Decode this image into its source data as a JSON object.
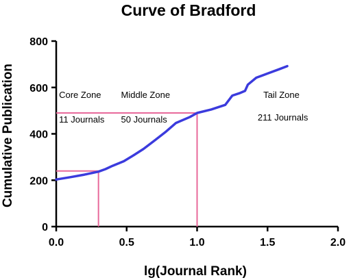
{
  "chart_data": {
    "type": "line",
    "title": "Curve of Bradford",
    "xlabel": "lg(Journal Rank)",
    "ylabel": "Cumulative Publication",
    "xlim": [
      0,
      2.0
    ],
    "ylim": [
      0,
      800
    ],
    "x_ticks": [
      "0.0",
      "0.5",
      "1.0",
      "1.5",
      "2.0"
    ],
    "y_ticks": [
      "0",
      "200",
      "400",
      "600",
      "800"
    ],
    "grid": false,
    "line_color": "#3b3bdd",
    "guide_color": "#e8689a",
    "series": [
      {
        "x": [
          0.0,
          0.1,
          0.2,
          0.3,
          0.35,
          0.4,
          0.48,
          0.55,
          0.62,
          0.7,
          0.78,
          0.85,
          0.95,
          1.0,
          1.1,
          1.2,
          1.25,
          1.3,
          1.34,
          1.36,
          1.42,
          1.5,
          1.58,
          1.64
        ],
        "y": [
          203,
          213,
          224,
          237,
          248,
          262,
          282,
          308,
          335,
          372,
          410,
          447,
          473,
          490,
          505,
          525,
          565,
          575,
          585,
          612,
          642,
          660,
          678,
          692
        ]
      }
    ],
    "guides": [
      {
        "x": 0.3,
        "y": 240
      },
      {
        "x": 1.0,
        "y": 490
      }
    ],
    "annotations": [
      {
        "text": "Core Zone",
        "x": 0.02,
        "y": 555
      },
      {
        "text": "Middle Zone",
        "x": 0.46,
        "y": 555
      },
      {
        "text": "Tail Zone",
        "x": 1.47,
        "y": 555
      },
      {
        "text": "11 Journals",
        "x": 0.02,
        "y": 448
      },
      {
        "text": "50 Journals",
        "x": 0.46,
        "y": 448
      },
      {
        "text": "211 Journals",
        "x": 1.43,
        "y": 458
      }
    ]
  }
}
